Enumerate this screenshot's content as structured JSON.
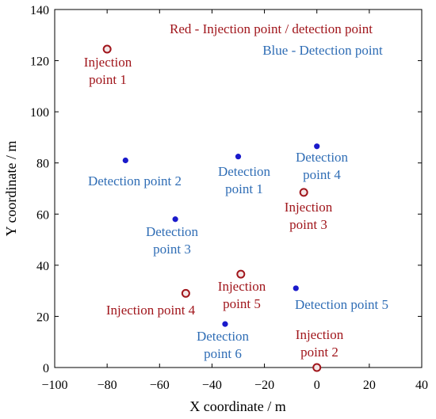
{
  "chart_data": {
    "type": "scatter",
    "xlabel": "X coordinate / m",
    "ylabel": "Y coordinate / m",
    "xlim": [
      -100,
      40
    ],
    "ylim": [
      0,
      140
    ],
    "xticks": [
      -100,
      -80,
      -60,
      -40,
      -20,
      0,
      20,
      40
    ],
    "yticks": [
      0,
      20,
      40,
      60,
      80,
      100,
      120,
      140
    ],
    "grid": false,
    "legend_text": [
      {
        "text": "Red - Injection point / detection point",
        "color": "#a0151b"
      },
      {
        "text": "Blue - Detection point",
        "color": "#2f6db5"
      }
    ],
    "series": [
      {
        "color": "#a0151b",
        "marker": "open-circle",
        "points": [
          {
            "x": -80,
            "y": 124.5,
            "label": [
              "Injection",
              "point 1"
            ]
          },
          {
            "x": 0,
            "y": 0,
            "label": [
              "Injection",
              "point 2"
            ]
          },
          {
            "x": -5,
            "y": 68.5,
            "label": [
              "Injection",
              "point 3"
            ]
          },
          {
            "x": -50,
            "y": 29,
            "label": [
              "Injection point 4"
            ]
          },
          {
            "x": -29,
            "y": 36.5,
            "label": [
              "Injection",
              "point 5"
            ]
          }
        ]
      },
      {
        "color": "#1a1acb",
        "label_color": "#2f6db5",
        "marker": "dot",
        "points": [
          {
            "x": -30,
            "y": 82.5,
            "label": [
              "Detection",
              "point 1"
            ]
          },
          {
            "x": -73,
            "y": 81,
            "label": [
              "Detection point 2"
            ]
          },
          {
            "x": -54,
            "y": 58,
            "label": [
              "Detection",
              "point 3"
            ]
          },
          {
            "x": 0,
            "y": 86.5,
            "label": [
              "Detection",
              "point 4"
            ]
          },
          {
            "x": -8,
            "y": 31,
            "label": [
              "Detection point 5"
            ]
          },
          {
            "x": -35,
            "y": 17,
            "label": [
              "Detection",
              "point 6"
            ]
          }
        ]
      }
    ]
  }
}
